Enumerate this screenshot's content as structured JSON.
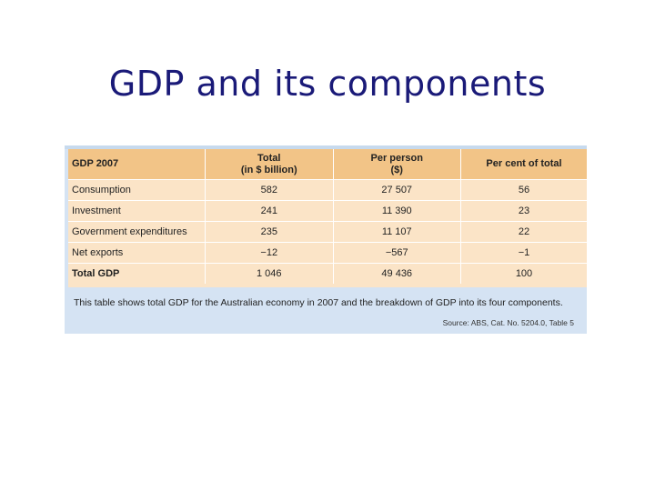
{
  "slide": {
    "title": "GDP and its components"
  },
  "table": {
    "headers": [
      "GDP 2007",
      "Total\n(in $ billion)",
      "Per person\n($)",
      "Per cent of total"
    ],
    "header_lines": [
      [
        "GDP 2007"
      ],
      [
        "Total",
        "(in $ billion)"
      ],
      [
        "Per person",
        "($)"
      ],
      [
        "Per cent of total"
      ]
    ],
    "rows": [
      [
        "Consumption",
        "582",
        "27 507",
        "56"
      ],
      [
        "Investment",
        "241",
        "11 390",
        "23"
      ],
      [
        "Government expenditures",
        "235",
        "11 107",
        "22"
      ],
      [
        "Net exports",
        "−12",
        "−567",
        "−1"
      ],
      [
        "Total GDP",
        "1 046",
        "49 436",
        "100"
      ]
    ],
    "caption": "This table shows total GDP for the Australian economy in 2007 and the breakdown of GDP into its four components.",
    "source": "Source: ABS, Cat. No. 5204.0, Table 5"
  },
  "colors": {
    "title": "#1a1a78",
    "header_bg": "#f2c487",
    "row_bg": "#fbe4c7",
    "caption_bg": "#d5e3f3"
  }
}
